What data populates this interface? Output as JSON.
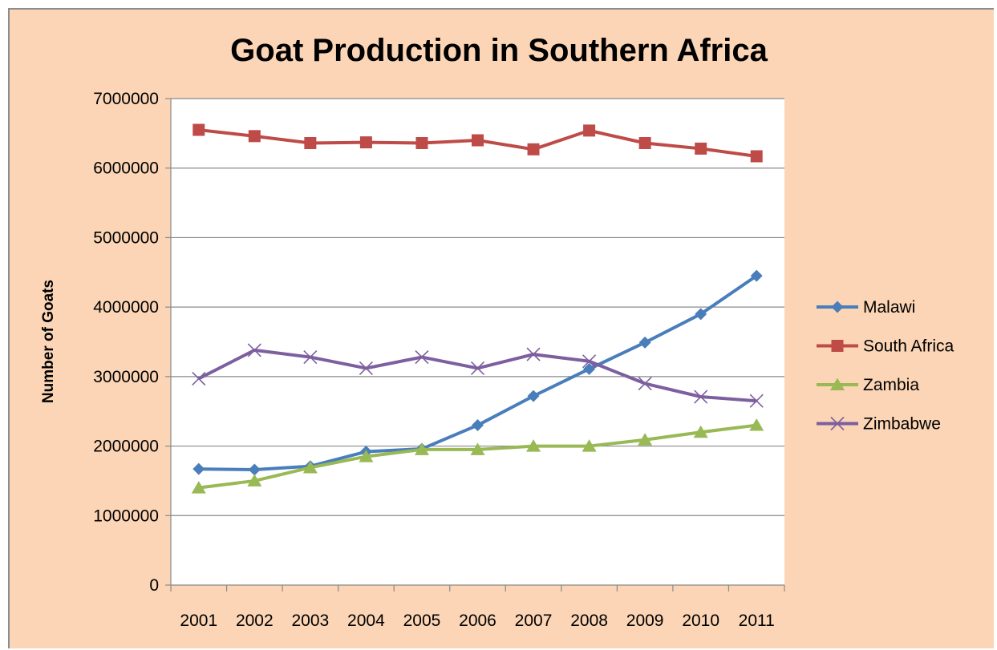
{
  "chart_data": {
    "type": "line",
    "title": "Goat Production in Southern Africa",
    "xlabel": "",
    "ylabel": "Number of Goats",
    "categories": [
      "2001",
      "2002",
      "2003",
      "2004",
      "2005",
      "2006",
      "2007",
      "2008",
      "2009",
      "2010",
      "2011"
    ],
    "ylim": [
      0,
      7000000
    ],
    "yticks": [
      0,
      1000000,
      2000000,
      3000000,
      4000000,
      5000000,
      6000000,
      7000000
    ],
    "grid": true,
    "legend_position": "right",
    "series": [
      {
        "name": "Malawi",
        "color": "#4a7ebb",
        "marker": "diamond",
        "values": [
          1670000,
          1660000,
          1710000,
          1920000,
          1960000,
          2300000,
          2720000,
          3110000,
          3490000,
          3900000,
          4450000
        ]
      },
      {
        "name": "South Africa",
        "color": "#be4b48",
        "marker": "square",
        "values": [
          6550000,
          6460000,
          6360000,
          6370000,
          6360000,
          6400000,
          6270000,
          6540000,
          6360000,
          6280000,
          6170000
        ]
      },
      {
        "name": "Zambia",
        "color": "#98b954",
        "marker": "triangle",
        "values": [
          1400000,
          1500000,
          1690000,
          1850000,
          1950000,
          1950000,
          2000000,
          2000000,
          2090000,
          2200000,
          2300000
        ]
      },
      {
        "name": "Zimbabwe",
        "color": "#7d5fa0",
        "marker": "x",
        "values": [
          2970000,
          3380000,
          3280000,
          3120000,
          3280000,
          3120000,
          3320000,
          3220000,
          2900000,
          2710000,
          2650000
        ]
      }
    ]
  }
}
